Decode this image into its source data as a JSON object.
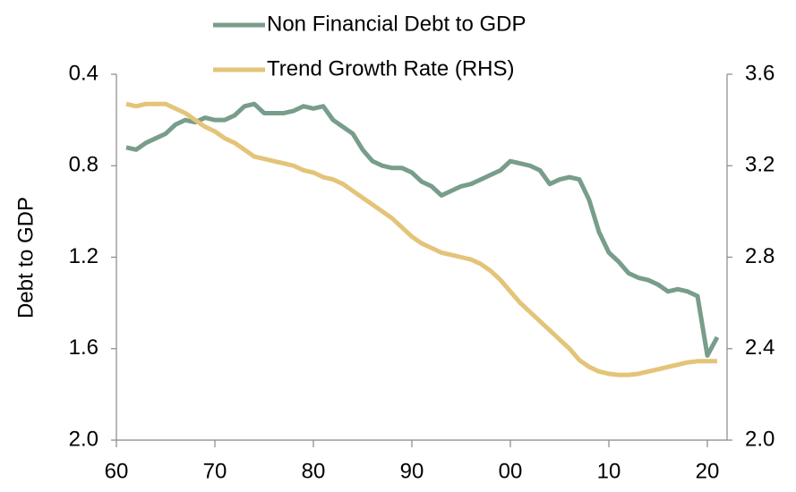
{
  "chart_data": {
    "type": "line",
    "y_label": "Debt to GDP",
    "x": [
      1961,
      1962,
      1963,
      1964,
      1965,
      1966,
      1967,
      1968,
      1969,
      1970,
      1971,
      1972,
      1973,
      1974,
      1975,
      1976,
      1977,
      1978,
      1979,
      1980,
      1981,
      1982,
      1983,
      1984,
      1985,
      1986,
      1987,
      1988,
      1989,
      1990,
      1991,
      1992,
      1993,
      1994,
      1995,
      1996,
      1997,
      1998,
      1999,
      2000,
      2001,
      2002,
      2003,
      2004,
      2005,
      2006,
      2007,
      2008,
      2009,
      2010,
      2011,
      2012,
      2013,
      2014,
      2015,
      2016,
      2017,
      2018,
      2019,
      2020,
      2021
    ],
    "series": [
      {
        "name": "Non Financial Debt to GDP",
        "color": "#789d8b",
        "values": [
          0.72,
          0.73,
          0.7,
          0.68,
          0.66,
          0.62,
          0.6,
          0.61,
          0.59,
          0.6,
          0.6,
          0.58,
          0.54,
          0.53,
          0.57,
          0.57,
          0.57,
          0.56,
          0.54,
          0.55,
          0.54,
          0.6,
          0.63,
          0.66,
          0.73,
          0.78,
          0.8,
          0.81,
          0.81,
          0.83,
          0.87,
          0.89,
          0.93,
          0.91,
          0.89,
          0.88,
          0.86,
          0.84,
          0.82,
          0.78,
          0.79,
          0.8,
          0.82,
          0.88,
          0.86,
          0.85,
          0.86,
          0.95,
          1.09,
          1.18,
          1.22,
          1.27,
          1.29,
          1.3,
          1.32,
          1.35,
          1.34,
          1.35,
          1.37,
          1.63,
          1.55
        ]
      },
      {
        "name": "Trend Growth Rate (RHS)",
        "color": "#e3c479",
        "axis": "y2",
        "values": [
          3.47,
          3.46,
          3.47,
          3.47,
          3.47,
          3.45,
          3.43,
          3.4,
          3.37,
          3.35,
          3.32,
          3.3,
          3.27,
          3.24,
          3.23,
          3.22,
          3.21,
          3.2,
          3.18,
          3.17,
          3.15,
          3.14,
          3.12,
          3.09,
          3.06,
          3.03,
          3.0,
          2.97,
          2.93,
          2.89,
          2.86,
          2.84,
          2.82,
          2.81,
          2.8,
          2.79,
          2.77,
          2.74,
          2.7,
          2.65,
          2.6,
          2.56,
          2.52,
          2.48,
          2.44,
          2.4,
          2.35,
          2.32,
          2.3,
          2.29,
          2.285,
          2.285,
          2.29,
          2.3,
          2.31,
          2.32,
          2.33,
          2.34,
          2.345,
          2.345,
          2.345
        ]
      }
    ],
    "xlim": [
      1960,
      2022
    ],
    "xticks": [
      {
        "value": 1960,
        "label": "60"
      },
      {
        "value": 1970,
        "label": "70"
      },
      {
        "value": 1980,
        "label": "80"
      },
      {
        "value": 1990,
        "label": "90"
      },
      {
        "value": 2000,
        "label": "00"
      },
      {
        "value": 2010,
        "label": "10"
      },
      {
        "value": 2020,
        "label": "20"
      }
    ],
    "ylim": [
      0.4,
      2.0
    ],
    "y_inverted": true,
    "yticks": [
      0.4,
      0.8,
      1.2,
      1.6,
      {
        "value": 2.0,
        "label": "2.0"
      }
    ],
    "y2lim": [
      2.0,
      3.6
    ],
    "y2ticks": [
      {
        "value": 2.0,
        "label": "2.0"
      },
      2.4,
      2.8,
      3.2,
      3.6
    ],
    "grid": false,
    "legend": "top"
  }
}
